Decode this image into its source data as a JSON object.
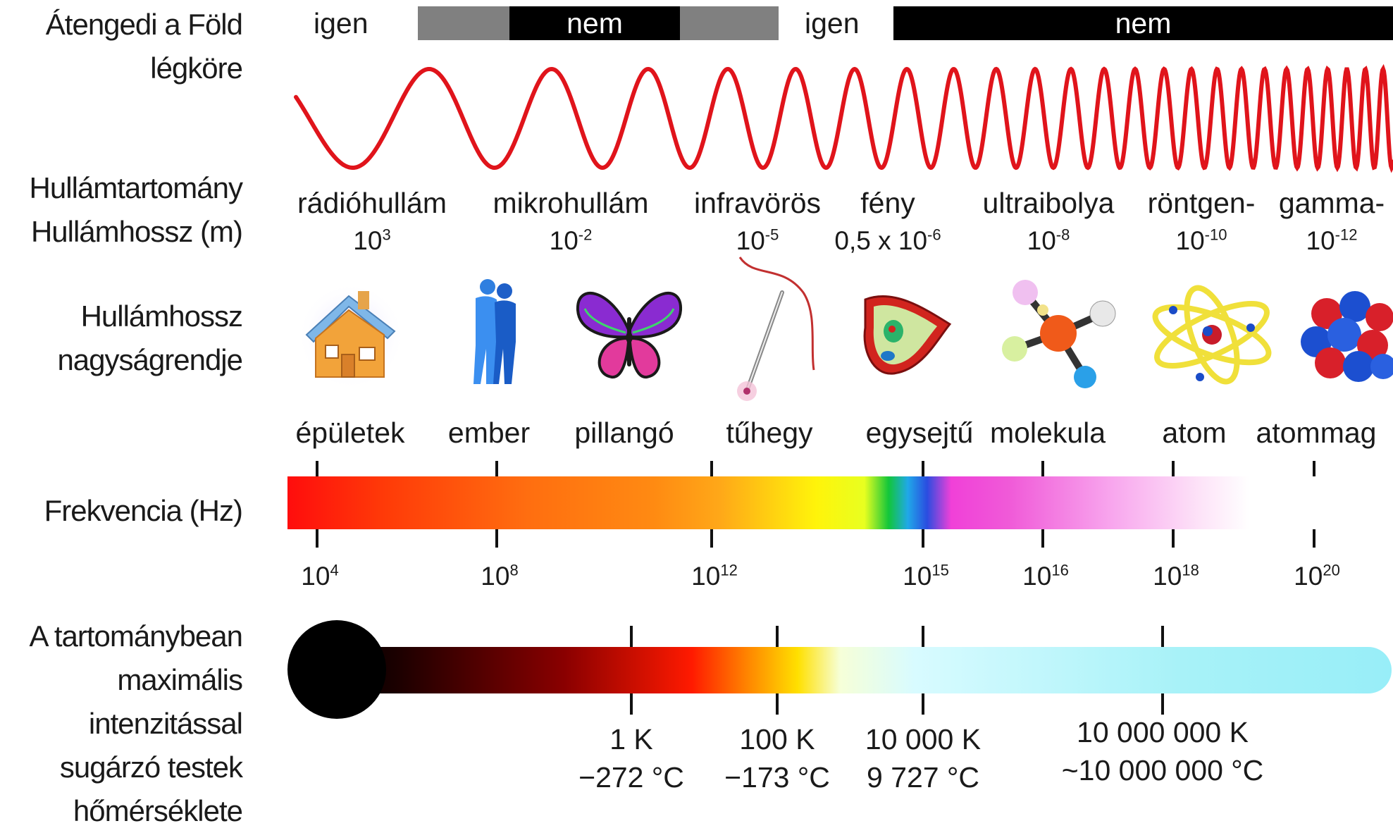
{
  "row_labels": {
    "atmosphere": [
      "Átengedi a Föld",
      "légköre"
    ],
    "band": [
      "Hullámtartomány",
      "Hullámhossz (m)"
    ],
    "scale": [
      "Hullámhossz",
      "nagyságrendje"
    ],
    "frequency": [
      "Frekvencia (Hz)"
    ],
    "temperature": [
      "A tartománybean",
      "maximális",
      "intenzitással",
      "sugárzó testek",
      "hőmérséklete"
    ]
  },
  "atmosphere": {
    "igen1": "igen",
    "nem1": "nem",
    "igen2": "igen",
    "nem2": "nem"
  },
  "bands": [
    {
      "name": "rádióhullám",
      "base": "10",
      "exp": "3"
    },
    {
      "name": "mikrohullám",
      "base": "10",
      "exp": "-2"
    },
    {
      "name": "infravörös",
      "base": "10",
      "exp": "-5"
    },
    {
      "name": "fény",
      "base": "0,5 x 10",
      "exp": "-6"
    },
    {
      "name": "ultraibolya",
      "base": "10",
      "exp": "-8"
    },
    {
      "name": "röntgen-",
      "base": "10",
      "exp": "-10"
    },
    {
      "name": "gamma-",
      "base": "10",
      "exp": "-12"
    }
  ],
  "objects": [
    "épületek",
    "ember",
    "pillangó",
    "tűhegy",
    "egysejtű",
    "molekula",
    "atom",
    "atommag"
  ],
  "icons": [
    "house-icon",
    "people-icon",
    "butterfly-icon",
    "needle-icon",
    "cell-icon",
    "molecule-icon",
    "atom-icon",
    "nucleus-icon"
  ],
  "frequencies": [
    {
      "base": "10",
      "exp": "4"
    },
    {
      "base": "10",
      "exp": "8"
    },
    {
      "base": "10",
      "exp": "12"
    },
    {
      "base": "10",
      "exp": "15"
    },
    {
      "base": "10",
      "exp": "16"
    },
    {
      "base": "10",
      "exp": "18"
    },
    {
      "base": "10",
      "exp": "20"
    }
  ],
  "temperatures": [
    {
      "kelvin": "1 K",
      "celsius": "−272 °C"
    },
    {
      "kelvin": "100 K",
      "celsius": "−173 °C"
    },
    {
      "kelvin": "10 000 K",
      "celsius": "9 727 °C"
    },
    {
      "kelvin": "10 000 000 K",
      "celsius": "~10 000 000 °C"
    }
  ],
  "colors": {
    "wave": "#e0141b",
    "atm_no": "#000000",
    "atm_partial": "#808080",
    "tick": "#111111"
  }
}
